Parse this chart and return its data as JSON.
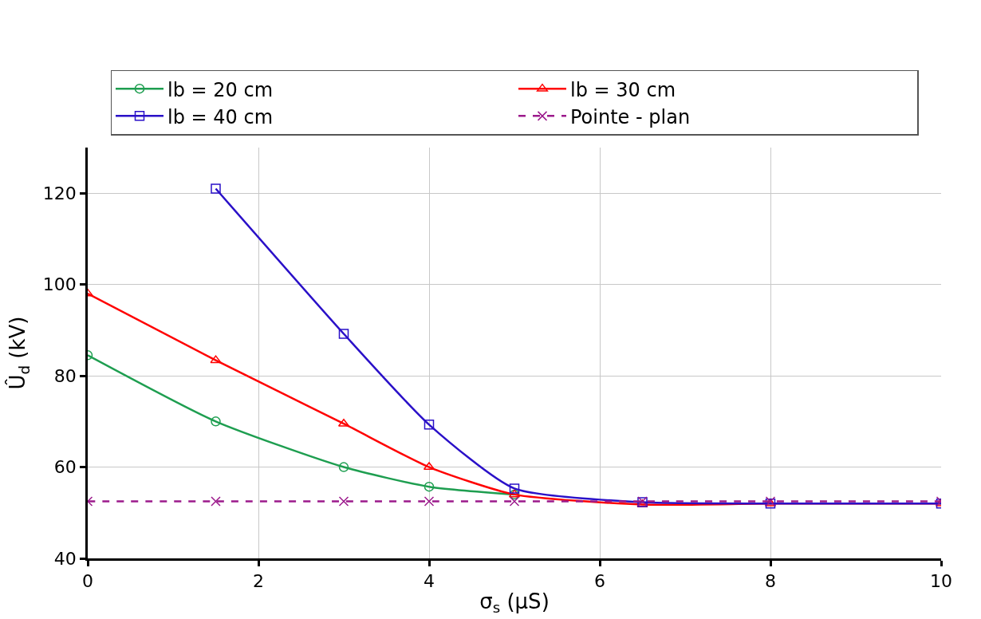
{
  "chart_data": {
    "type": "line",
    "xlabel": "σ$_{s}$ (µS)",
    "ylabel": "Û$_{d}$ (kV)",
    "xlim": [
      0,
      10
    ],
    "xticks": [
      0,
      2,
      4,
      6,
      8,
      10
    ],
    "ylim": [
      40,
      130
    ],
    "yticks": [
      40,
      60,
      80,
      100,
      120
    ],
    "grid": true,
    "legend": "top",
    "series": [
      {
        "name": "lb = 20 cm",
        "color": "#1e9e50",
        "marker": "circle",
        "line_style": "solid",
        "x": [
          0,
          1.5,
          3,
          4,
          5
        ],
        "values": [
          84.5,
          70,
          60,
          55.7,
          54
        ]
      },
      {
        "name": "lb = 30 cm",
        "color": "#ff0000",
        "marker": "triangle",
        "line_style": "solid",
        "x": [
          0,
          1.5,
          3,
          4,
          5,
          6.5,
          8,
          10
        ],
        "values": [
          98,
          83.4,
          69.5,
          60,
          54,
          51.8,
          52,
          52
        ]
      },
      {
        "name": "lb = 40 cm",
        "color": "#2a10c8",
        "marker": "square",
        "line_style": "solid",
        "x": [
          1.5,
          3,
          4,
          5,
          6.5,
          8,
          10
        ],
        "values": [
          121,
          89.2,
          69.3,
          55.3,
          52.3,
          52,
          52
        ]
      },
      {
        "name": "Pointe - plan",
        "color": "#9c1a8c",
        "marker": "cross",
        "line_style": "dashed",
        "x": [
          0,
          1.5,
          3,
          4,
          5,
          6.5,
          8,
          10
        ],
        "values": [
          52.5,
          52.5,
          52.5,
          52.5,
          52.5,
          52.5,
          52.5,
          52.5
        ]
      }
    ]
  }
}
